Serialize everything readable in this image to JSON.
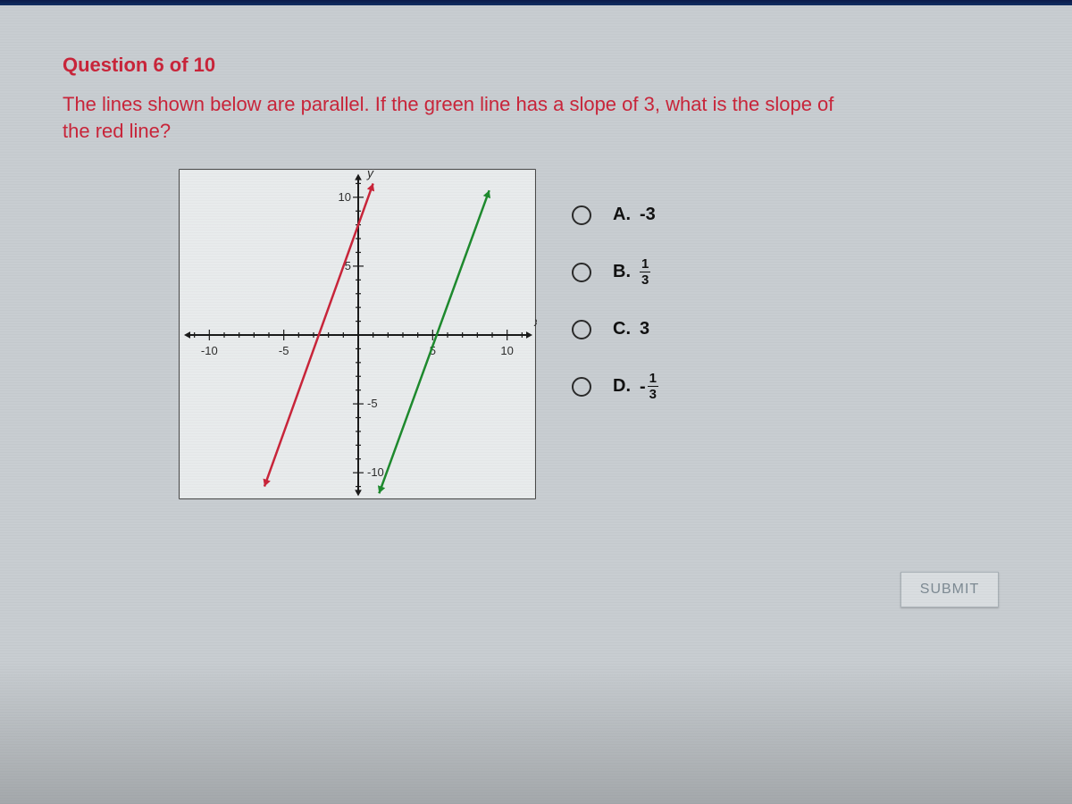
{
  "header": {
    "question_number_label": "Question 6 of 10"
  },
  "question": {
    "text": "The lines shown below are parallel. If the green line has a slope of 3, what is the slope of the red line?"
  },
  "chart": {
    "type": "line",
    "background_color": "#e8ebec",
    "border_color": "#4a4a4a",
    "axis_color": "#1a1a1a",
    "tick_color": "#1a1a1a",
    "tick_label_color": "#2d2d2d",
    "tick_label_fontsize": 13,
    "axis_label_fontsize": 14,
    "xlim": [
      -12,
      12
    ],
    "ylim": [
      -12,
      12
    ],
    "xtick_positions": [
      -10,
      -5,
      5,
      10
    ],
    "xtick_labels": [
      "-10",
      "-5",
      "5",
      "10"
    ],
    "ytick_positions": [
      -10,
      -5,
      5,
      10
    ],
    "ytick_labels": [
      "-10",
      "-5",
      "5",
      "10"
    ],
    "x_axis_label": "x",
    "y_axis_label": "y",
    "lines": [
      {
        "name": "red-line",
        "color": "#c9253a",
        "slope": 3,
        "intercept": 8,
        "stroke_width": 2.5,
        "endpoints": [
          [
            -6.3,
            -11
          ],
          [
            1,
            11
          ]
        ]
      },
      {
        "name": "green-line",
        "color": "#1e8a2e",
        "slope": 3,
        "intercept": -16,
        "stroke_width": 2.5,
        "endpoints": [
          [
            1.4,
            -11.5
          ],
          [
            8.8,
            10.5
          ]
        ]
      }
    ],
    "arrow_size": 7
  },
  "answers": {
    "options": [
      {
        "letter": "A.",
        "display": "plain",
        "value": "-3"
      },
      {
        "letter": "B.",
        "display": "fraction",
        "sign": "",
        "num": "1",
        "den": "3"
      },
      {
        "letter": "C.",
        "display": "plain",
        "value": "3"
      },
      {
        "letter": "D.",
        "display": "fraction",
        "sign": "-",
        "num": "1",
        "den": "3"
      }
    ]
  },
  "submit": {
    "label": "SUBMIT"
  },
  "colors": {
    "page_bg": "#c8cdd1",
    "accent_red": "#c9253a",
    "submit_bg": "#d9dde0",
    "submit_fg": "#7d8a93"
  }
}
